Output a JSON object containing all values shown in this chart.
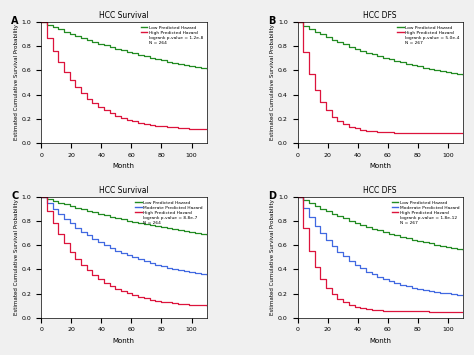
{
  "title_A": "HCC Survival",
  "title_B": "HCC DFS",
  "title_C": "HCC Survival",
  "title_D": "HCC DFS",
  "label_A": "A",
  "label_B": "B",
  "label_C": "C",
  "label_D": "D",
  "xlabel": "Month",
  "ylabel": "Estimated Cumulative Survival Probability",
  "ylim": [
    0.0,
    1.0
  ],
  "xlim": [
    0,
    110
  ],
  "xticks": [
    0,
    20,
    40,
    60,
    80,
    100
  ],
  "yticks": [
    0.0,
    0.2,
    0.4,
    0.6,
    0.8,
    1.0
  ],
  "color_low": "#228B22",
  "color_mid": "#4169E1",
  "color_high": "#DC143C",
  "legend_A": [
    "Low Predicted Hazard",
    "High Predicted Hazard",
    "logrank p-value = 1.2e-8",
    "N = 264"
  ],
  "legend_B": [
    "Low Predicted Hazard",
    "High Predicted Hazard",
    "logrank p-value = 5.0e-4",
    "N = 267"
  ],
  "legend_C": [
    "Low Predicted Hazard",
    "Moderate Predicted Hazard",
    "High Predicted Hazard",
    "logrank p-value = 8.8e-7",
    "N = 264"
  ],
  "legend_D": [
    "Low Predicted Hazard",
    "Moderate Predicted Hazard",
    "High Predicted Hazard",
    "logrank p-value = 1.8e-12",
    "N = 267"
  ],
  "bg_color": "#f0f0f0",
  "plot_bg": "#ffffff"
}
